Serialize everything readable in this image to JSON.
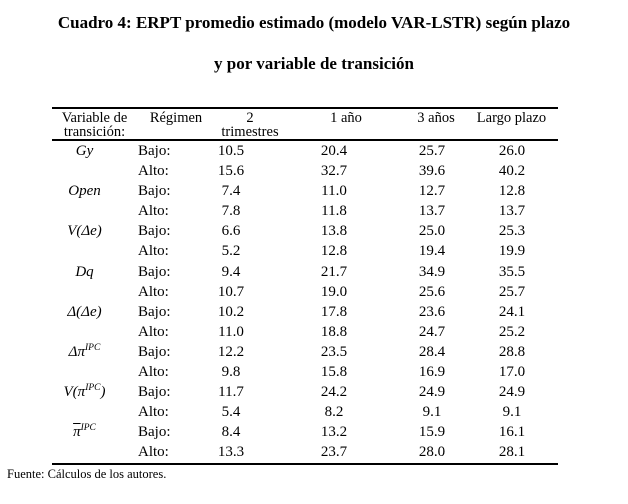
{
  "title": {
    "line1": "Cuadro 4: ERPT promedio estimado (modelo VAR-LSTR) según plazo",
    "line2": "y por variable de transición"
  },
  "table": {
    "headers": [
      {
        "l1": "Variable de",
        "l2": "transición:"
      },
      {
        "l1": "Régimen",
        "l2": ""
      },
      {
        "l1": "2",
        "l2": "trimestres"
      },
      {
        "l1": "1 año",
        "l2": ""
      },
      {
        "l1": "3 años",
        "l2": ""
      },
      {
        "l1": "Largo plazo",
        "l2": ""
      }
    ],
    "groups": [
      {
        "label": {
          "pre": "Gy",
          "sup": "",
          "post": "",
          "overline": false
        },
        "rows": [
          {
            "regime": "Bajo:",
            "values": [
              "10.5",
              "20.4",
              "25.7",
              "26.0"
            ]
          },
          {
            "regime": "Alto:",
            "values": [
              "15.6",
              "32.7",
              "39.6",
              "40.2"
            ]
          }
        ]
      },
      {
        "label": {
          "pre": "Open",
          "sup": "",
          "post": "",
          "overline": false
        },
        "rows": [
          {
            "regime": "Bajo:",
            "values": [
              "7.4",
              "11.0",
              "12.7",
              "12.8"
            ]
          },
          {
            "regime": "Alto:",
            "values": [
              "7.8",
              "11.8",
              "13.7",
              "13.7"
            ]
          }
        ]
      },
      {
        "label": {
          "pre": "V(Δe)",
          "sup": "",
          "post": "",
          "overline": false
        },
        "rows": [
          {
            "regime": "Bajo:",
            "values": [
              "6.6",
              "13.8",
              "25.0",
              "25.3"
            ]
          },
          {
            "regime": "Alto:",
            "values": [
              "5.2",
              "12.8",
              "19.4",
              "19.9"
            ]
          }
        ]
      },
      {
        "label": {
          "pre": "Dq",
          "sup": "",
          "post": "",
          "overline": false
        },
        "rows": [
          {
            "regime": "Bajo:",
            "values": [
              "9.4",
              "21.7",
              "34.9",
              "35.5"
            ]
          },
          {
            "regime": "Alto:",
            "values": [
              "10.7",
              "19.0",
              "25.6",
              "25.7"
            ]
          }
        ]
      },
      {
        "label": {
          "pre": "Δ(Δe)",
          "sup": "",
          "post": "",
          "overline": false
        },
        "rows": [
          {
            "regime": "Bajo:",
            "values": [
              "10.2",
              "17.8",
              "23.6",
              "24.1"
            ]
          },
          {
            "regime": "Alto:",
            "values": [
              "11.0",
              "18.8",
              "24.7",
              "25.2"
            ]
          }
        ]
      },
      {
        "label": {
          "pre": "Δπ",
          "sup": "IPC",
          "post": "",
          "overline": false
        },
        "rows": [
          {
            "regime": "Bajo:",
            "values": [
              "12.2",
              "23.5",
              "28.4",
              "28.8"
            ]
          },
          {
            "regime": "Alto:",
            "values": [
              "9.8",
              "15.8",
              "16.9",
              "17.0"
            ]
          }
        ]
      },
      {
        "label": {
          "pre": "V(π",
          "sup": "IPC",
          "post": ")",
          "overline": false
        },
        "rows": [
          {
            "regime": "Bajo:",
            "values": [
              "11.7",
              "24.2",
              "24.9",
              "24.9"
            ]
          },
          {
            "regime": "Alto:",
            "values": [
              "5.4",
              "8.2",
              "9.1",
              "9.1"
            ]
          }
        ]
      },
      {
        "label": {
          "pre": "π",
          "sup": "IPC",
          "post": "",
          "overline": true
        },
        "rows": [
          {
            "regime": "Bajo:",
            "values": [
              "8.4",
              "13.2",
              "15.9",
              "16.1"
            ]
          },
          {
            "regime": "Alto:",
            "values": [
              "13.3",
              "23.7",
              "28.0",
              "28.1"
            ]
          }
        ]
      }
    ]
  },
  "source": "Fuente: Cálculos de los autores."
}
